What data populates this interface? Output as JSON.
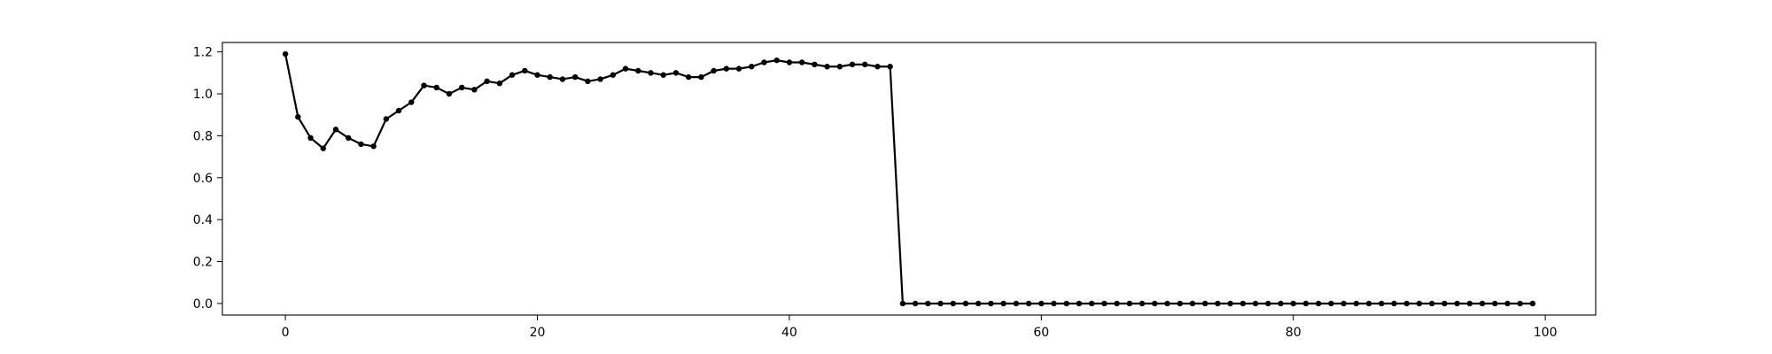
{
  "chart_data": {
    "type": "line",
    "title": "",
    "xlabel": "",
    "ylabel": "",
    "xlim": [
      -5,
      104
    ],
    "ylim": [
      -0.055,
      1.245
    ],
    "xticks": [
      0,
      20,
      40,
      60,
      80,
      100
    ],
    "xtick_labels": [
      "0",
      "20",
      "40",
      "60",
      "80",
      "100"
    ],
    "yticks": [
      0.0,
      0.2,
      0.4,
      0.6,
      0.8,
      1.0,
      1.2
    ],
    "ytick_labels": [
      "0.0",
      "0.2",
      "0.4",
      "0.6",
      "0.8",
      "1.0",
      "1.2"
    ],
    "grid": false,
    "legend": "none",
    "colors": {
      "series": "#000000",
      "axes": "#000000",
      "background": "#ffffff"
    },
    "series": [
      {
        "marker": "point",
        "x": [
          0,
          1,
          2,
          3,
          4,
          5,
          6,
          7,
          8,
          9,
          10,
          11,
          12,
          13,
          14,
          15,
          16,
          17,
          18,
          19,
          20,
          21,
          22,
          23,
          24,
          25,
          26,
          27,
          28,
          29,
          30,
          31,
          32,
          33,
          34,
          35,
          36,
          37,
          38,
          39,
          40,
          41,
          42,
          43,
          44,
          45,
          46,
          47,
          48,
          49,
          50,
          51,
          52,
          53,
          54,
          55,
          56,
          57,
          58,
          59,
          60,
          61,
          62,
          63,
          64,
          65,
          66,
          67,
          68,
          69,
          70,
          71,
          72,
          73,
          74,
          75,
          76,
          77,
          78,
          79,
          80,
          81,
          82,
          83,
          84,
          85,
          86,
          87,
          88,
          89,
          90,
          91,
          92,
          93,
          94,
          95,
          96,
          97,
          98,
          99
        ],
        "y": [
          1.19,
          0.89,
          0.79,
          0.74,
          0.83,
          0.79,
          0.76,
          0.75,
          0.88,
          0.92,
          0.96,
          1.04,
          1.03,
          1.0,
          1.03,
          1.02,
          1.06,
          1.05,
          1.09,
          1.11,
          1.09,
          1.08,
          1.07,
          1.08,
          1.06,
          1.07,
          1.09,
          1.12,
          1.11,
          1.1,
          1.09,
          1.1,
          1.08,
          1.08,
          1.11,
          1.12,
          1.12,
          1.13,
          1.15,
          1.16,
          1.15,
          1.15,
          1.14,
          1.13,
          1.13,
          1.14,
          1.14,
          1.13,
          1.13,
          0.0,
          0.0,
          0.0,
          0.0,
          0.0,
          0.0,
          0.0,
          0.0,
          0.0,
          0.0,
          0.0,
          0.0,
          0.0,
          0.0,
          0.0,
          0.0,
          0.0,
          0.0,
          0.0,
          0.0,
          0.0,
          0.0,
          0.0,
          0.0,
          0.0,
          0.0,
          0.0,
          0.0,
          0.0,
          0.0,
          0.0,
          0.0,
          0.0,
          0.0,
          0.0,
          0.0,
          0.0,
          0.0,
          0.0,
          0.0,
          0.0,
          0.0,
          0.0,
          0.0,
          0.0,
          0.0,
          0.0,
          0.0,
          0.0,
          0.0,
          0.0
        ]
      }
    ]
  }
}
